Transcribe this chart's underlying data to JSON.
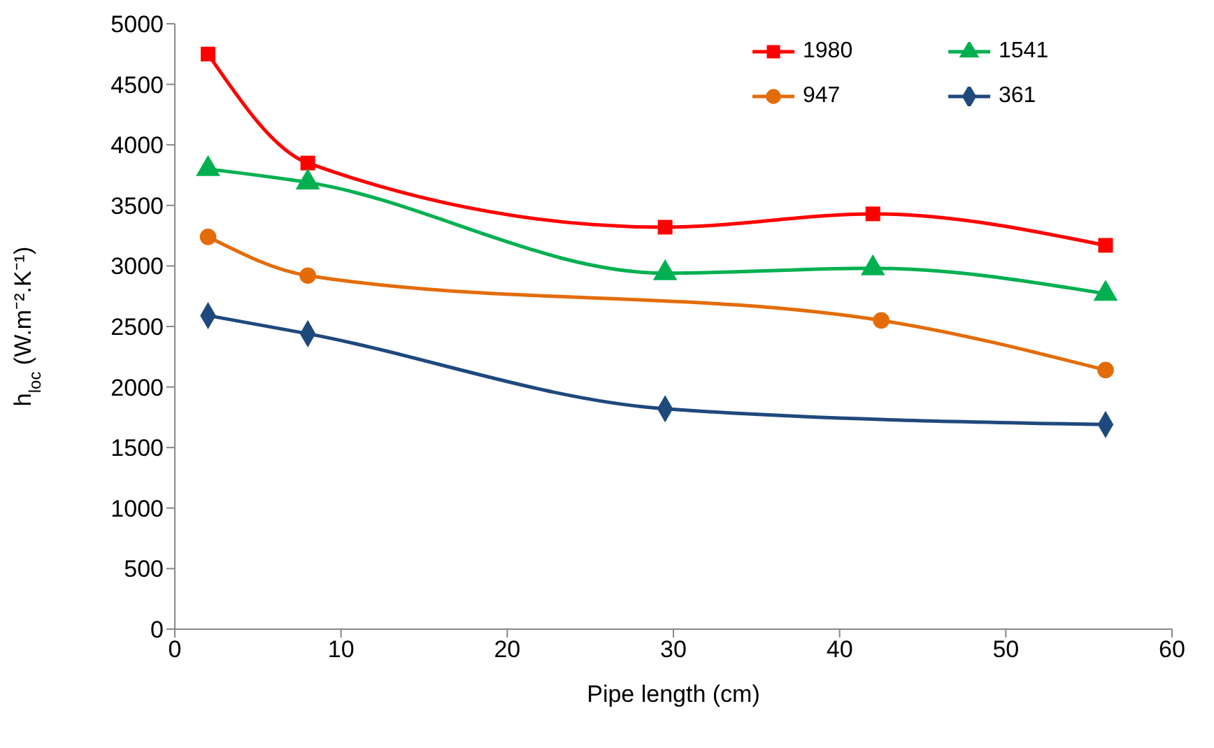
{
  "chart_data": {
    "type": "line",
    "xlabel": "Pipe length (cm)",
    "ylabel": "h$_{loc}$ (W.m⁻².K⁻¹)",
    "xlim": [
      0,
      60
    ],
    "xticks": [
      0,
      10,
      20,
      30,
      40,
      50,
      60
    ],
    "ylim": [
      0,
      5000
    ],
    "yticks": [
      0,
      500,
      1000,
      1500,
      2000,
      2500,
      3000,
      3500,
      4000,
      4500,
      5000
    ],
    "grid": false,
    "legend": "top right",
    "series": [
      {
        "name": "1980",
        "color": "#ff0000",
        "marker": "square",
        "x": [
          2,
          8,
          29.5,
          42,
          56
        ],
        "values": [
          4750,
          3850,
          3320,
          3430,
          3170
        ]
      },
      {
        "name": "1541",
        "color": "#00b050",
        "marker": "triangle",
        "x": [
          2,
          8,
          29.5,
          42,
          56
        ],
        "values": [
          3800,
          3690,
          2940,
          2980,
          2770
        ]
      },
      {
        "name": "947",
        "color": "#e36c09",
        "marker": "circle",
        "x": [
          2,
          8,
          42.5,
          56
        ],
        "values": [
          3240,
          2920,
          2550,
          2140
        ]
      },
      {
        "name": "361",
        "color": "#1f497d",
        "marker": "diamond",
        "x": [
          2,
          8,
          29.5,
          56
        ],
        "values": [
          2590,
          2440,
          1820,
          1690
        ]
      }
    ]
  }
}
